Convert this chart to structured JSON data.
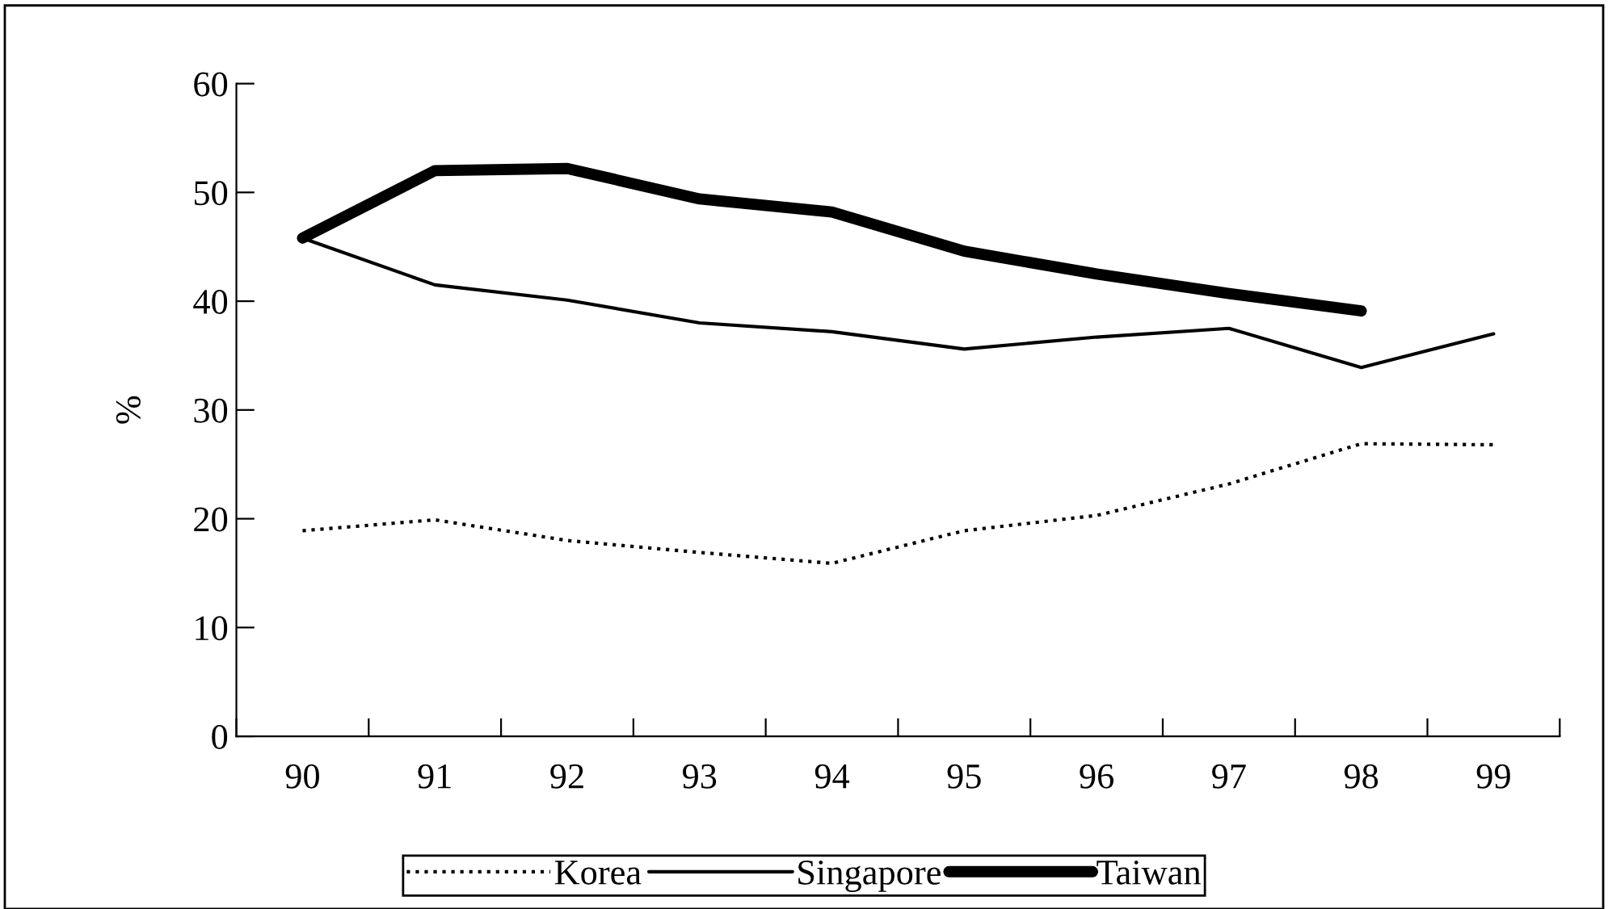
{
  "chart_data": {
    "type": "line",
    "ylabel": "%",
    "categories": [
      "90",
      "91",
      "92",
      "93",
      "94",
      "95",
      "96",
      "97",
      "98",
      "99"
    ],
    "series": [
      {
        "name": "Korea",
        "color": "#000000",
        "line_style": "dotted",
        "values": [
          18.9,
          19.9,
          18.0,
          16.9,
          15.9,
          18.9,
          20.3,
          23.2,
          26.9,
          26.8
        ]
      },
      {
        "name": "Singapore",
        "color": "#000000",
        "line_style": "solid",
        "values": [
          45.8,
          41.5,
          40.1,
          38.0,
          37.2,
          35.6,
          36.7,
          37.5,
          33.9,
          37.0
        ]
      },
      {
        "name": "Taiwan",
        "color": "#000000",
        "line_style": "solid",
        "values": [
          45.8,
          52.0,
          52.2,
          49.4,
          48.2,
          44.6,
          42.5,
          40.7,
          39.1,
          null
        ]
      }
    ],
    "ylim": [
      0,
      60
    ],
    "yticks": [
      0,
      10,
      20,
      30,
      40,
      50,
      60
    ],
    "grid": false,
    "legend": "bottom",
    "marker": "none"
  }
}
